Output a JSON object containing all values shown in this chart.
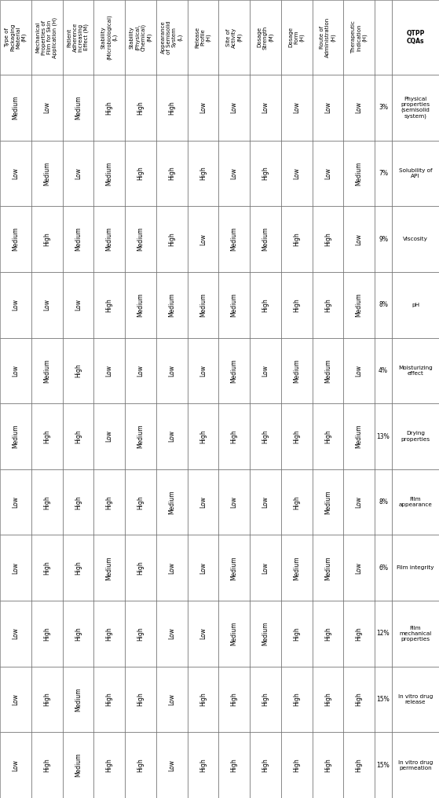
{
  "col_headers_display": [
    "Type of\nPackaging\nMaterial\n(M)",
    "Mechanical\nProperties of\nFilm for Skin\nApplication (H)",
    "Patient\nAdherence\nIncreasing\nEffect (M)",
    "Stability\n(Microbiological)\n(L)",
    "Stability\n(Physical,\nChemical)\n(M)",
    "Appearance\nof Semisolid\nSystem\n(L)",
    "Release\nProfile\n(H)",
    "Site of\nActivity\n(M)",
    "Dosage\nStrength\n(M)",
    "Dosage\nForm\n(H)",
    "Route of\nAdministration\n(H)",
    "Therapeutic\nIndication\n(H)"
  ],
  "col_keys": [
    "Type of Packaging",
    "Mechanical Properties",
    "Patient Adherence",
    "Stability Microbiological",
    "Stability Physical Chemical",
    "Appearance of Semisolid System",
    "Release Profile",
    "Site of Activity",
    "Dosage Strength",
    "Dosage Form",
    "Route of Administration",
    "Therapeutic Indication"
  ],
  "rows": [
    {
      "cqa": "Physical\nproperties\n(semisolid\nsystem)",
      "pct": "3%",
      "Therapeutic Indication": "Low",
      "Route of Administration": "Low",
      "Dosage Form": "Low",
      "Dosage Strength": "Low",
      "Site of Activity": "Low",
      "Release Profile": "Low",
      "Appearance of Semisolid System": "High",
      "Stability Physical Chemical": "High",
      "Stability Microbiological": "High",
      "Patient Adherence": "Medium",
      "Mechanical Properties": "Low",
      "Type of Packaging": "Medium"
    },
    {
      "cqa": "Solubility of\nAPI",
      "pct": "7%",
      "Therapeutic Indication": "Medium",
      "Route of Administration": "Low",
      "Dosage Form": "Low",
      "Dosage Strength": "High",
      "Site of Activity": "Low",
      "Release Profile": "High",
      "Appearance of Semisolid System": "High",
      "Stability Physical Chemical": "High",
      "Stability Microbiological": "Medium",
      "Patient Adherence": "Low",
      "Mechanical Properties": "Medium",
      "Type of Packaging": "Low"
    },
    {
      "cqa": "Viscosity",
      "pct": "9%",
      "Therapeutic Indication": "Low",
      "Route of Administration": "High",
      "Dosage Form": "High",
      "Dosage Strength": "Medium",
      "Site of Activity": "Medium",
      "Release Profile": "Low",
      "Appearance of Semisolid System": "High",
      "Stability Physical Chemical": "Medium",
      "Stability Microbiological": "Medium",
      "Patient Adherence": "Medium",
      "Mechanical Properties": "High",
      "Type of Packaging": "Medium"
    },
    {
      "cqa": "pH",
      "pct": "8%",
      "Therapeutic Indication": "Medium",
      "Route of Administration": "High",
      "Dosage Form": "High",
      "Dosage Strength": "High",
      "Site of Activity": "Medium",
      "Release Profile": "Medium",
      "Appearance of Semisolid System": "Medium",
      "Stability Physical Chemical": "Medium",
      "Stability Microbiological": "High",
      "Patient Adherence": "Low",
      "Mechanical Properties": "Low",
      "Type of Packaging": "Low"
    },
    {
      "cqa": "Moisturizing\neffect",
      "pct": "4%",
      "Therapeutic Indication": "Low",
      "Route of Administration": "Medium",
      "Dosage Form": "Medium",
      "Dosage Strength": "Low",
      "Site of Activity": "Medium",
      "Release Profile": "Low",
      "Appearance of Semisolid System": "Low",
      "Stability Physical Chemical": "Low",
      "Stability Microbiological": "Low",
      "Patient Adherence": "High",
      "Mechanical Properties": "Medium",
      "Type of Packaging": "Low"
    },
    {
      "cqa": "Drying\nproperties",
      "pct": "13%",
      "Therapeutic Indication": "Medium",
      "Route of Administration": "High",
      "Dosage Form": "High",
      "Dosage Strength": "High",
      "Site of Activity": "High",
      "Release Profile": "High",
      "Appearance of Semisolid System": "Low",
      "Stability Physical Chemical": "Medium",
      "Stability Microbiological": "Low",
      "Patient Adherence": "High",
      "Mechanical Properties": "High",
      "Type of Packaging": "Medium"
    },
    {
      "cqa": "Film\nappearance",
      "pct": "8%",
      "Therapeutic Indication": "Low",
      "Route of Administration": "Medium",
      "Dosage Form": "High",
      "Dosage Strength": "Low",
      "Site of Activity": "Low",
      "Release Profile": "Low",
      "Appearance of Semisolid System": "Medium",
      "Stability Physical Chemical": "High",
      "Stability Microbiological": "High",
      "Patient Adherence": "High",
      "Mechanical Properties": "High",
      "Type of Packaging": "Low"
    },
    {
      "cqa": "Film integrity",
      "pct": "6%",
      "Therapeutic Indication": "Low",
      "Route of Administration": "Medium",
      "Dosage Form": "Medium",
      "Dosage Strength": "Low",
      "Site of Activity": "Medium",
      "Release Profile": "Low",
      "Appearance of Semisolid System": "Low",
      "Stability Physical Chemical": "High",
      "Stability Microbiological": "Medium",
      "Patient Adherence": "High",
      "Mechanical Properties": "High",
      "Type of Packaging": "Low"
    },
    {
      "cqa": "Film\nmechanical\nproperties",
      "pct": "12%",
      "Therapeutic Indication": "High",
      "Route of Administration": "High",
      "Dosage Form": "High",
      "Dosage Strength": "Medium",
      "Site of Activity": "Medium",
      "Release Profile": "Low",
      "Appearance of Semisolid System": "Low",
      "Stability Physical Chemical": "High",
      "Stability Microbiological": "High",
      "Patient Adherence": "High",
      "Mechanical Properties": "High",
      "Type of Packaging": "Low"
    },
    {
      "cqa": "In vitro drug\nrelease",
      "pct": "15%",
      "Therapeutic Indication": "High",
      "Route of Administration": "High",
      "Dosage Form": "High",
      "Dosage Strength": "High",
      "Site of Activity": "High",
      "Release Profile": "High",
      "Appearance of Semisolid System": "Low",
      "Stability Physical Chemical": "High",
      "Stability Microbiological": "High",
      "Patient Adherence": "Medium",
      "Mechanical Properties": "High",
      "Type of Packaging": "Low"
    },
    {
      "cqa": "In vitro drug\npermeation",
      "pct": "15%",
      "Therapeutic Indication": "High",
      "Route of Administration": "High",
      "Dosage Form": "High",
      "Dosage Strength": "High",
      "Site of Activity": "High",
      "Release Profile": "High",
      "Appearance of Semisolid System": "Low",
      "Stability Physical Chemical": "High",
      "Stability Microbiological": "High",
      "Patient Adherence": "Medium",
      "Mechanical Properties": "High",
      "Type of Packaging": "Low"
    }
  ],
  "bg_color": "#ffffff",
  "border_color": "#555555",
  "text_color": "#000000",
  "header_font_size": 5.0,
  "cell_font_size": 5.5,
  "label_font_size": 5.5
}
